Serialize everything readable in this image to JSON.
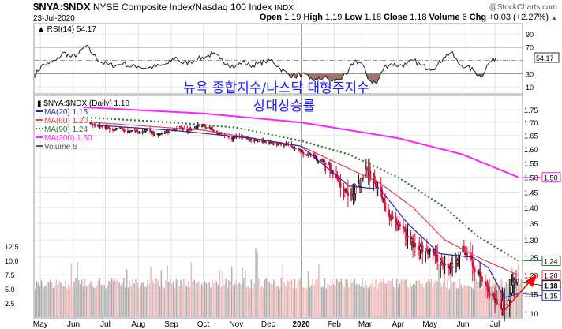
{
  "header": {
    "symbol": "$NYA:$NDX",
    "name": "NYSE Composite Index/Nasdaq 100 Index",
    "exchange": "INDX",
    "date": "23-Jul-2020",
    "watermark": "@StockCharts.com",
    "open_label": "Open",
    "open": "1.19",
    "high_label": "High",
    "high": "1.19",
    "low_label": "Low",
    "low": "1.18",
    "close_label": "Close",
    "close": "1.18",
    "volume_label": "Volume",
    "volume": "6",
    "chg_label": "Chg",
    "chg": "+0.03 (+2.27%)",
    "up_arrow": "▲"
  },
  "annotation": {
    "line1": "뉴욕 종합지수/나스닥 대형주지수",
    "line2": "상대상승률"
  },
  "chart_data": [
    {
      "type": "line",
      "title": "RSI(14) 54.17",
      "ylim": [
        0,
        100
      ],
      "yticks": [
        "90",
        "70",
        "30",
        "10"
      ],
      "ytick_values": [
        90,
        70,
        30,
        10
      ],
      "overbought": 70,
      "oversold": 30,
      "midline": 50,
      "last_label": "54.17",
      "start": "2019-05-01",
      "step_days": 7,
      "values": [
        25,
        42,
        45,
        50,
        62,
        55,
        60,
        72,
        58,
        47,
        44,
        42,
        46,
        40,
        41,
        38,
        40,
        42,
        45,
        55,
        45,
        48,
        52,
        55,
        60,
        52,
        45,
        40,
        48,
        42,
        45,
        48,
        50,
        38,
        30,
        25,
        30,
        22,
        20,
        25,
        18,
        22,
        28,
        50,
        45,
        20,
        15,
        40,
        45,
        42,
        44,
        50,
        42,
        38,
        40,
        55,
        62,
        45,
        40,
        35,
        25,
        45,
        54.17
      ]
    },
    {
      "type": "candlestick",
      "title": "$NYA:$NDX (Daily) 1.18",
      "scale": "log",
      "ylim": [
        1.08,
        1.78
      ],
      "yticks": [
        "1.75",
        "1.70",
        "1.65",
        "1.60",
        "1.55",
        "1.50",
        "1.45",
        "1.40",
        "1.35",
        "1.30",
        "1.25",
        "1.20",
        "1.15",
        "1.10"
      ],
      "xticks": [
        "May",
        "Jun",
        "Jul",
        "Aug",
        "Sep",
        "Oct",
        "Nov",
        "Dec",
        "2020",
        "Feb",
        "Mar",
        "Apr",
        "May",
        "Jun",
        "Jul"
      ],
      "xtick_dates": [
        "2019-05-01",
        "2019-06-01",
        "2019-07-01",
        "2019-08-01",
        "2019-09-01",
        "2019-10-01",
        "2019-11-01",
        "2019-12-01",
        "2020-01-01",
        "2020-02-01",
        "2020-03-01",
        "2020-04-01",
        "2020-05-01",
        "2020-06-01",
        "2020-07-01"
      ],
      "close_start": "2019-06-17",
      "close_step_days": 7,
      "weekly_close": [
        1.7,
        1.69,
        1.68,
        1.67,
        1.68,
        1.66,
        1.67,
        1.66,
        1.67,
        1.65,
        1.66,
        1.67,
        1.68,
        1.67,
        1.68,
        1.69,
        1.68,
        1.66,
        1.65,
        1.64,
        1.65,
        1.64,
        1.63,
        1.63,
        1.62,
        1.62,
        1.62,
        1.61,
        1.6,
        1.59,
        1.57,
        1.55,
        1.54,
        1.5,
        1.47,
        1.44,
        1.47,
        1.52,
        1.5,
        1.45,
        1.38,
        1.35,
        1.33,
        1.3,
        1.27,
        1.28,
        1.26,
        1.24,
        1.22,
        1.23,
        1.27,
        1.25,
        1.21,
        1.18,
        1.15,
        1.12,
        1.13,
        1.18
      ],
      "legend": [
        {
          "label": "$NYA:$NDX (Daily) 1.18",
          "color": "#000000"
        },
        {
          "label": "MA(20) 1.15",
          "color": "#2b2b9e"
        },
        {
          "label": "MA(60) 1.20",
          "color": "#e0405a"
        },
        {
          "label": "MA(90) 1.24",
          "color": "#2a7a2a"
        },
        {
          "label": "MA(300) 1.50",
          "color": "#ff22ff"
        },
        {
          "label": "Volume 6",
          "color": "#555555"
        }
      ],
      "series": [
        {
          "name": "MA(300)",
          "last": "1.50",
          "color": "#ff22ff",
          "points": [
            [
              "2019-06-10",
              1.76
            ],
            [
              "2019-10-01",
              1.735
            ],
            [
              "2020-01-01",
              1.7
            ],
            [
              "2020-04-01",
              1.64
            ],
            [
              "2020-06-01",
              1.58
            ],
            [
              "2020-07-23",
              1.5
            ]
          ]
        },
        {
          "name": "MA(90)",
          "last": "1.24",
          "color": "#2a7a2a",
          "points": [
            [
              "2019-06-10",
              1.72
            ],
            [
              "2019-09-01",
              1.7
            ],
            [
              "2019-11-01",
              1.68
            ],
            [
              "2020-01-01",
              1.63
            ],
            [
              "2020-02-15",
              1.58
            ],
            [
              "2020-04-01",
              1.5
            ],
            [
              "2020-05-15",
              1.4
            ],
            [
              "2020-06-15",
              1.31
            ],
            [
              "2020-07-23",
              1.24
            ]
          ]
        },
        {
          "name": "MA(60)",
          "last": "1.20",
          "color": "#e0405a",
          "points": [
            [
              "2019-06-20",
              1.7
            ],
            [
              "2019-10-01",
              1.67
            ],
            [
              "2020-01-01",
              1.61
            ],
            [
              "2020-02-15",
              1.53
            ],
            [
              "2020-03-15",
              1.48
            ],
            [
              "2020-04-15",
              1.4
            ],
            [
              "2020-05-15",
              1.3
            ],
            [
              "2020-06-15",
              1.25
            ],
            [
              "2020-07-23",
              1.2
            ]
          ]
        },
        {
          "name": "MA(20)",
          "last": "1.15",
          "color": "#2b2b9e",
          "points": [
            [
              "2019-06-20",
              1.69
            ],
            [
              "2019-09-01",
              1.67
            ],
            [
              "2019-11-15",
              1.64
            ],
            [
              "2020-01-01",
              1.61
            ],
            [
              "2020-02-15",
              1.47
            ],
            [
              "2020-03-15",
              1.46
            ],
            [
              "2020-04-10",
              1.35
            ],
            [
              "2020-05-10",
              1.26
            ],
            [
              "2020-06-10",
              1.25
            ],
            [
              "2020-06-25",
              1.22
            ],
            [
              "2020-07-10",
              1.14
            ],
            [
              "2020-07-23",
              1.15
            ]
          ]
        }
      ],
      "price_last_label": "1.18",
      "volume": {
        "yticks": [
          "12.5",
          "10.0",
          "7.5",
          "5.0",
          "2.5"
        ],
        "ytick_values": [
          12.5,
          10,
          7.5,
          5,
          2.5
        ],
        "typical": 6,
        "last": 6
      }
    }
  ]
}
